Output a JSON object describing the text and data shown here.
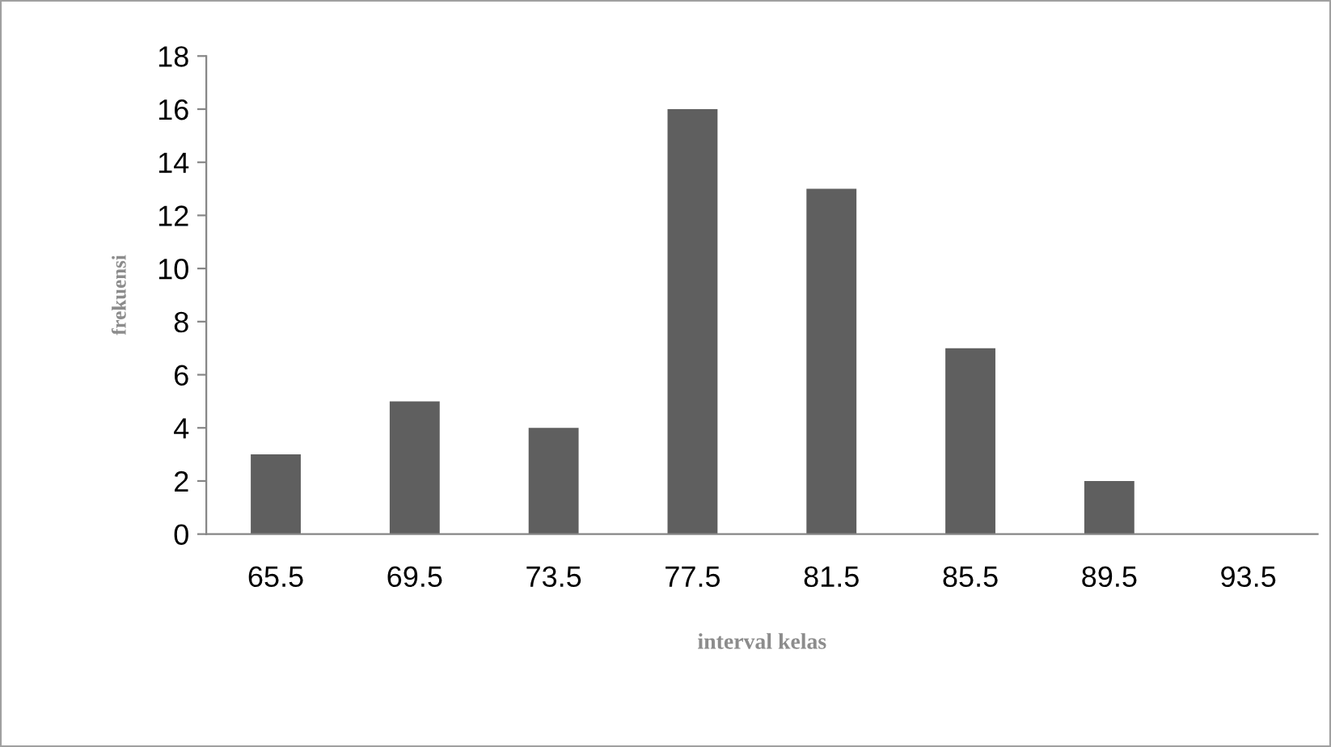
{
  "chart_data": {
    "type": "bar",
    "xlabel": "interval kelas",
    "ylabel": "frekuensi",
    "categories": [
      "65.5",
      "69.5",
      "73.5",
      "77.5",
      "81.5",
      "85.5",
      "89.5",
      "93.5"
    ],
    "values": [
      3,
      5,
      4,
      16,
      13,
      7,
      2,
      0
    ],
    "color": "#5f5f5f",
    "ylim": [
      0,
      18
    ],
    "yticks": [
      0,
      2,
      4,
      6,
      8,
      10,
      12,
      14,
      16,
      18
    ],
    "grid": false,
    "legend": false
  }
}
